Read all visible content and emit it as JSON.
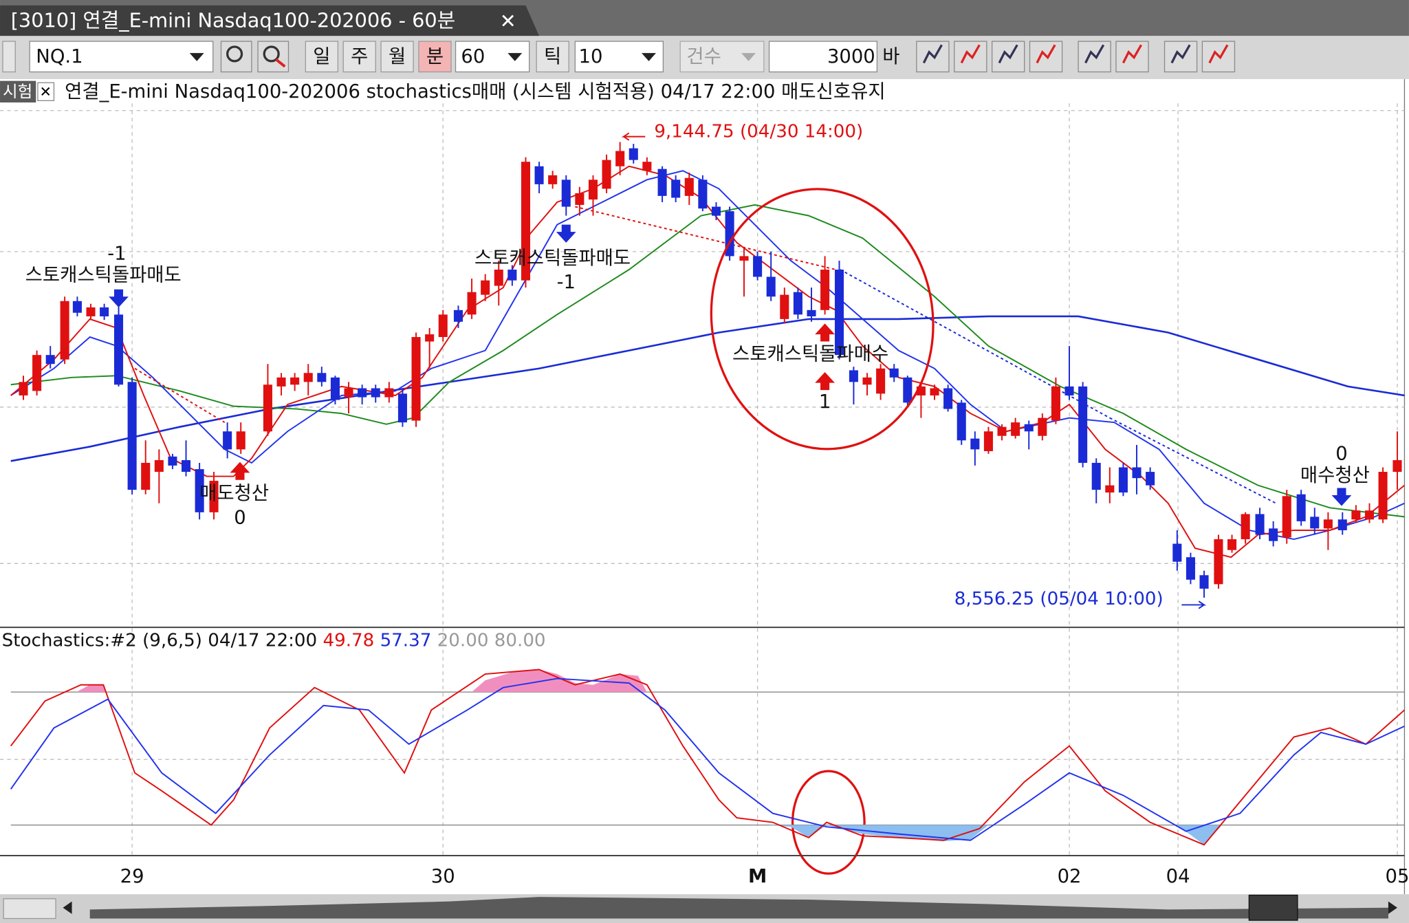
{
  "window": {
    "title": "[3010] 연결_E-mini Nasdaq100-202006 - 60분"
  },
  "toolbar": {
    "symbol": "NQ.1",
    "periods": [
      "일",
      "주",
      "월",
      "분"
    ],
    "interval": "60",
    "tick_label": "틱",
    "tick_value": "10",
    "count_label": "건수",
    "count": "3000",
    "count_unit": "바"
  },
  "chart": {
    "tag": "시험",
    "header": "연결_E-mini Nasdaq100-202006 stochastics매매 (시스템 시험적용) 04/17 22:00 매도신호유지",
    "annotations": [
      {
        "text": "-1"
      },
      {
        "text": "스토캐스틱돌파매도"
      },
      {
        "text": "매도청산"
      },
      {
        "text": "0"
      },
      {
        "text": "스토캐스틱돌파매도"
      },
      {
        "text": "-1"
      },
      {
        "text": "스토캐스틱돌파매수"
      },
      {
        "text": "1"
      },
      {
        "text": "0"
      },
      {
        "text": "매수청산"
      }
    ],
    "high_label": "9,144.75 (04/30 14:00)",
    "low_label": "8,556.25 (05/04 10:00)"
  },
  "stochastics": {
    "label": "Stochastics:#2  (9,6,5) 04/17 22:00",
    "k": "49.78",
    "d": "57.37",
    "levels": "20.00 80.00"
  },
  "x_axis": {
    "labels": [
      "29",
      "30",
      "M",
      "02",
      "04",
      "05"
    ]
  }
}
